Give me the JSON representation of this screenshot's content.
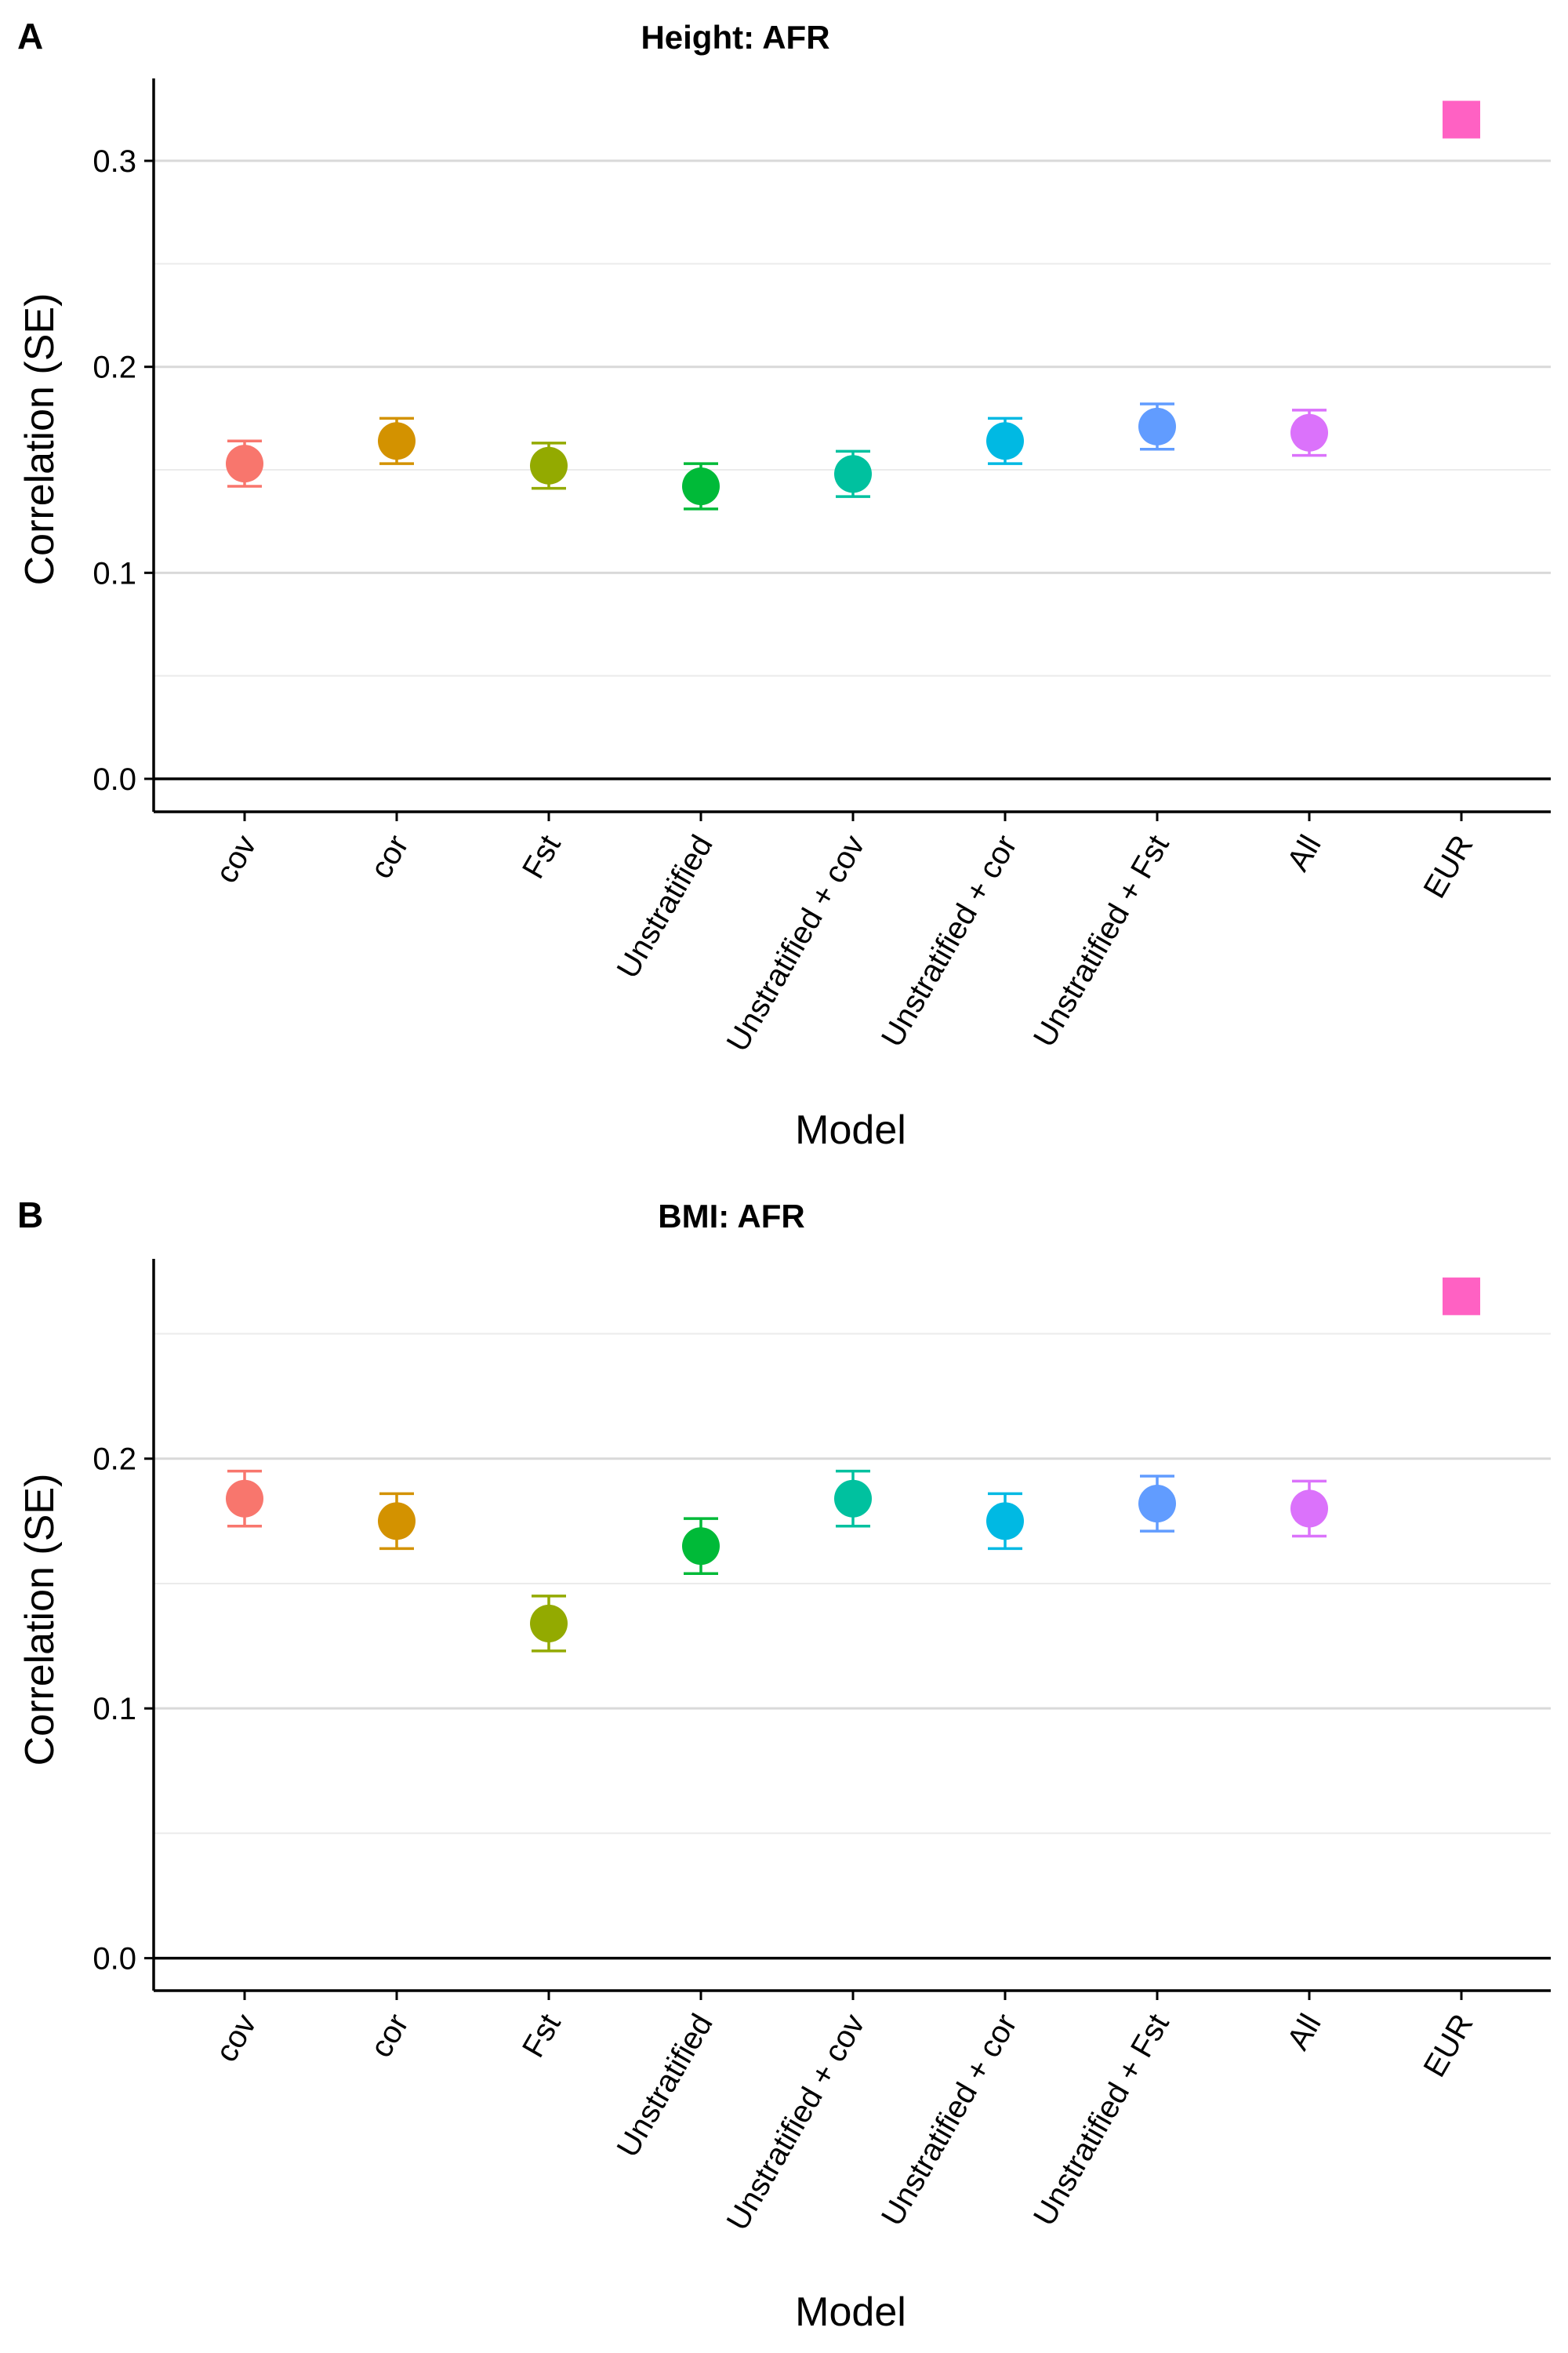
{
  "chart_data": [
    {
      "panel": "A",
      "type": "scatter",
      "title": "Height: AFR",
      "xlabel": "Model",
      "ylabel": "Correlation (SE)",
      "ylim": [
        -0.016,
        0.34
      ],
      "yticks": [
        "0.0",
        "0.1",
        "0.2",
        "0.3"
      ],
      "categories": [
        "cov",
        "cor",
        "Fst",
        "Unstratified",
        "Unstratified + cov",
        "Unstratified + cor",
        "Unstratified + Fst",
        "All",
        "EUR"
      ],
      "values": [
        0.153,
        0.164,
        0.152,
        0.142,
        0.148,
        0.164,
        0.171,
        0.168,
        0.32
      ],
      "error_low": [
        0.142,
        0.153,
        0.141,
        0.131,
        0.137,
        0.153,
        0.16,
        0.157,
        null
      ],
      "error_high": [
        0.164,
        0.175,
        0.163,
        0.153,
        0.159,
        0.175,
        0.182,
        0.179,
        null
      ],
      "colors": [
        "#F8766D",
        "#D39200",
        "#93AA00",
        "#00BA38",
        "#00C19F",
        "#00B9E3",
        "#619CFF",
        "#DB72FB",
        "#FF61C3"
      ],
      "markers": [
        "circle",
        "circle",
        "circle",
        "circle",
        "circle",
        "circle",
        "circle",
        "circle",
        "square"
      ],
      "grid": true
    },
    {
      "panel": "B",
      "type": "scatter",
      "title": "BMI: AFR",
      "xlabel": "Model",
      "ylabel": "Correlation (SE)",
      "ylim": [
        -0.013,
        0.28
      ],
      "yticks": [
        "0.0",
        "0.1",
        "0.2"
      ],
      "categories": [
        "cov",
        "cor",
        "Fst",
        "Unstratified",
        "Unstratified + cov",
        "Unstratified + cor",
        "Unstratified + Fst",
        "All",
        "EUR"
      ],
      "values": [
        0.184,
        0.175,
        0.134,
        0.165,
        0.184,
        0.175,
        0.182,
        0.18,
        0.265
      ],
      "error_low": [
        0.173,
        0.164,
        0.123,
        0.154,
        0.173,
        0.164,
        0.171,
        0.169,
        null
      ],
      "error_high": [
        0.195,
        0.186,
        0.145,
        0.176,
        0.195,
        0.186,
        0.193,
        0.191,
        null
      ],
      "colors": [
        "#F8766D",
        "#D39200",
        "#93AA00",
        "#00BA38",
        "#00C19F",
        "#00B9E3",
        "#619CFF",
        "#DB72FB",
        "#FF61C3"
      ],
      "markers": [
        "circle",
        "circle",
        "circle",
        "circle",
        "circle",
        "circle",
        "circle",
        "circle",
        "square"
      ],
      "grid": true
    }
  ]
}
